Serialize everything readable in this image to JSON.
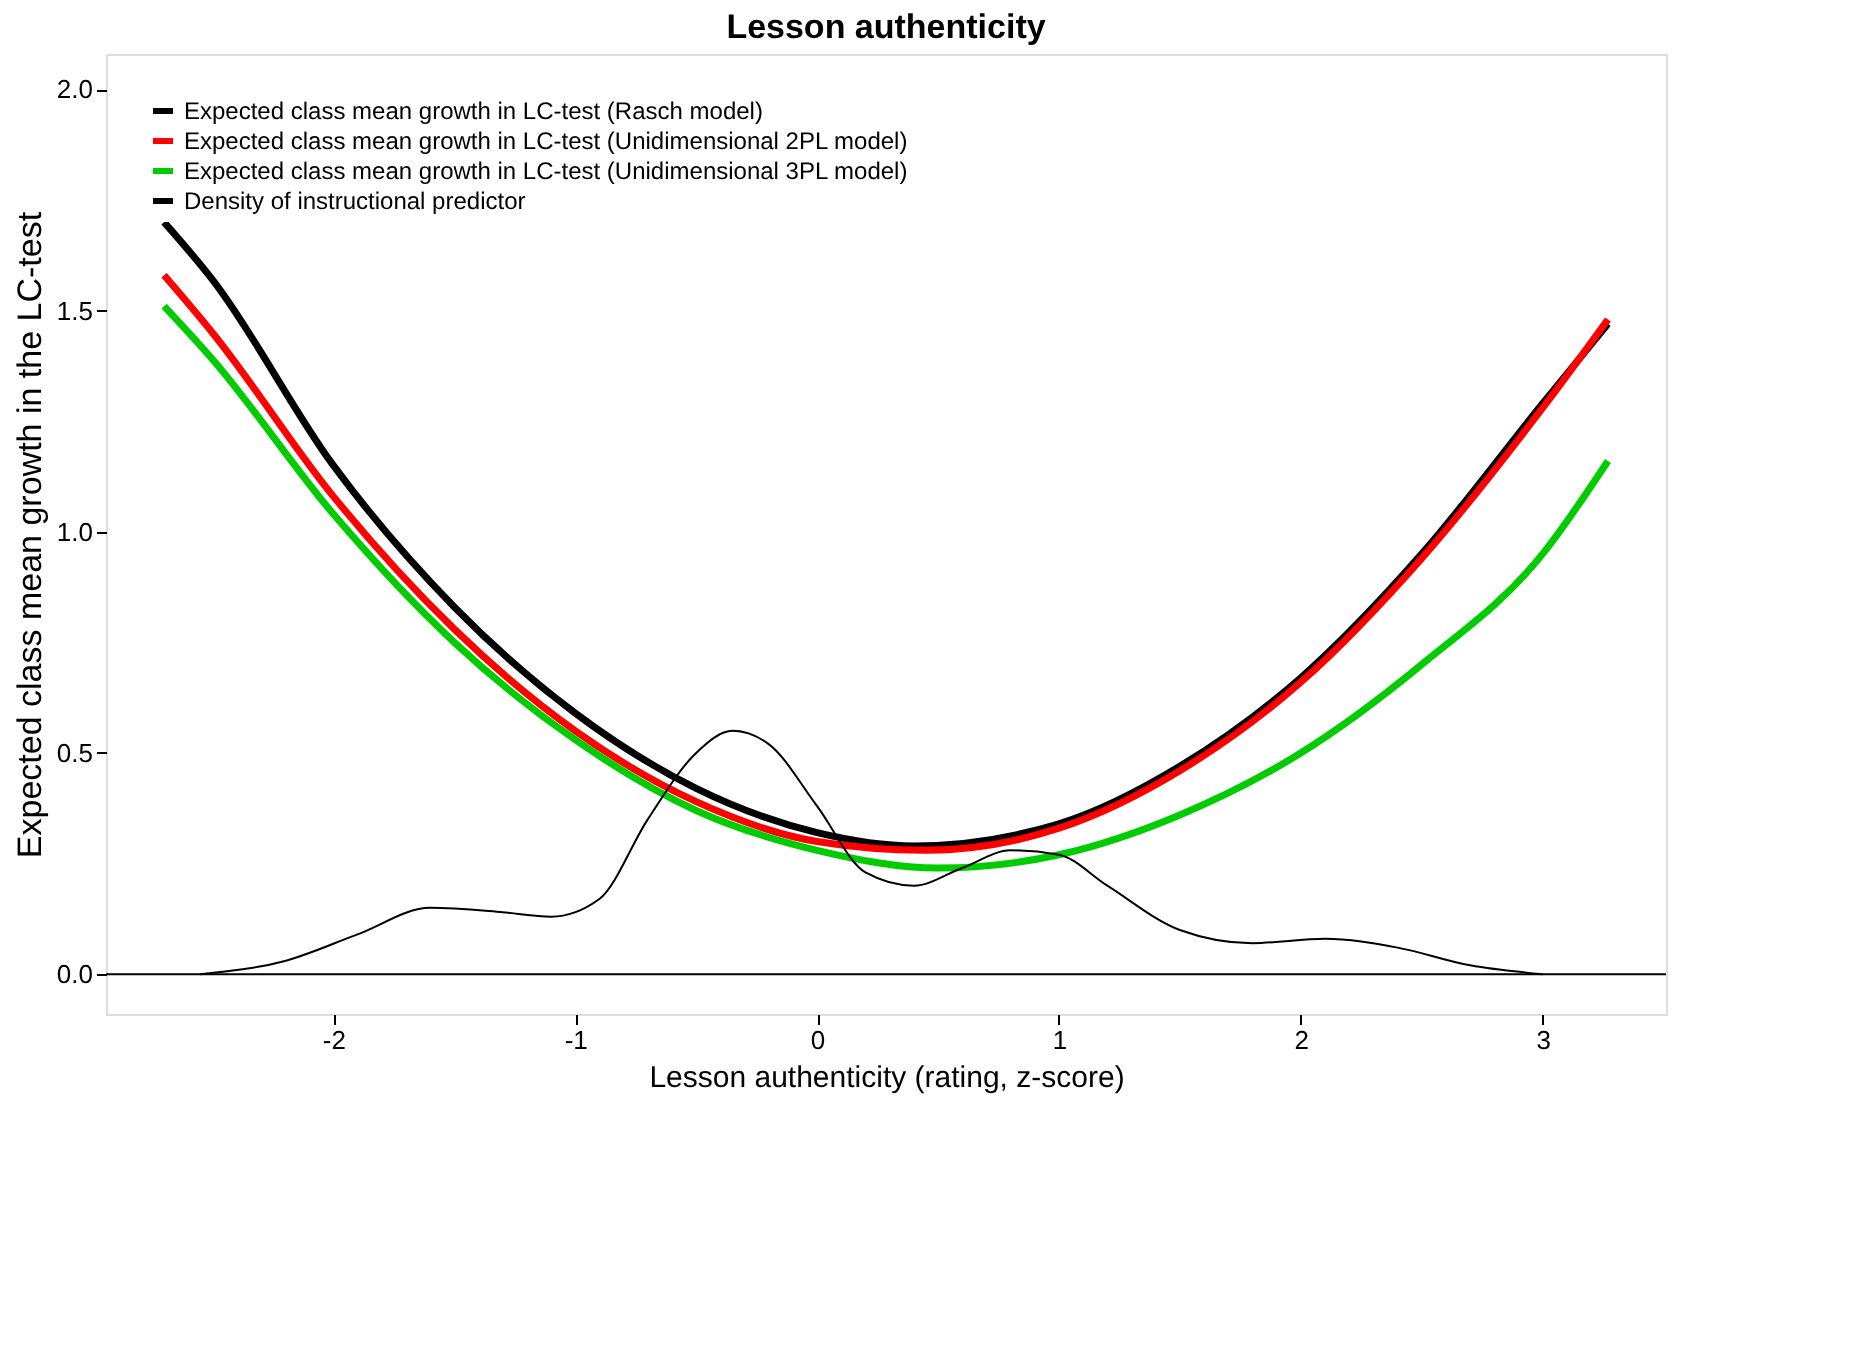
{
  "chart_data": {
    "type": "line",
    "title": "Lesson authenticity",
    "xlabel": "Lesson authenticity (rating, z-score)",
    "ylabel": "Expected class mean growth in the LC-test",
    "xlim": [
      -2.94,
      3.51
    ],
    "xticks": [
      -2,
      -1,
      0,
      1,
      2,
      3
    ],
    "ylim": [
      -0.09,
      2.08
    ],
    "yticks": [
      {
        "value": 0,
        "label": "0.0"
      },
      {
        "value": 0.5,
        "label": "0.5"
      },
      {
        "value": 1,
        "label": "1.0"
      },
      {
        "value": 1.5,
        "label": "1.5"
      },
      {
        "value": 2,
        "label": "2.0"
      }
    ],
    "grid": false,
    "legend": "top left",
    "marker": "none",
    "line_style": "solid",
    "ref_lines": [
      {
        "axis": "y",
        "value": 0,
        "color": "#000000"
      }
    ],
    "series": [
      {
        "name": "Expected class mean growth in LC-test (Rasch model)",
        "color": "#000000",
        "x": [
          -2.7,
          -2.5,
          -2,
          -1.5,
          -1,
          -0.5,
          0,
          0.4,
          1,
          1.5,
          2,
          2.5,
          3,
          3.27
        ],
        "values": [
          1.7,
          1.57,
          1.15,
          0.83,
          0.59,
          0.42,
          0.32,
          0.29,
          0.34,
          0.47,
          0.67,
          0.95,
          1.29,
          1.47
        ]
      },
      {
        "name": "Expected class mean growth in LC-test (Unidimensional 2PL model)",
        "color": "#ff0000",
        "x": [
          -2.7,
          -2.5,
          -2,
          -1.5,
          -1,
          -0.5,
          0,
          0.45,
          1,
          1.5,
          2,
          2.5,
          3,
          3.27
        ],
        "values": [
          1.58,
          1.45,
          1.08,
          0.78,
          0.55,
          0.39,
          0.3,
          0.28,
          0.33,
          0.46,
          0.66,
          0.94,
          1.28,
          1.48
        ]
      },
      {
        "name": "Expected class mean growth in LC-test (Unidimensional 3PL model)",
        "color": "#00cc00",
        "x": [
          -2.7,
          -2.5,
          -2,
          -1.5,
          -1,
          -0.5,
          0,
          0.5,
          1,
          1.5,
          2,
          2.5,
          3,
          3.27
        ],
        "values": [
          1.51,
          1.39,
          1.04,
          0.75,
          0.53,
          0.37,
          0.28,
          0.24,
          0.27,
          0.36,
          0.5,
          0.7,
          0.95,
          1.16
        ]
      },
      {
        "name": "Density of instructional predictor",
        "color": "#000000",
        "x": [
          -2.55,
          -2.2,
          -1.9,
          -1.6,
          -1.3,
          -1.1,
          -0.9,
          -0.7,
          -0.5,
          -0.35,
          -0.2,
          0,
          0.2,
          0.4,
          0.6,
          0.8,
          1.0,
          1.2,
          1.5,
          1.8,
          2.1,
          2.4,
          2.7,
          3.0
        ],
        "values": [
          0,
          0.03,
          0.09,
          0.15,
          0.14,
          0.13,
          0.17,
          0.35,
          0.5,
          0.55,
          0.52,
          0.38,
          0.23,
          0.2,
          0.24,
          0.28,
          0.27,
          0.2,
          0.1,
          0.07,
          0.08,
          0.06,
          0.02,
          0.0
        ]
      }
    ]
  }
}
